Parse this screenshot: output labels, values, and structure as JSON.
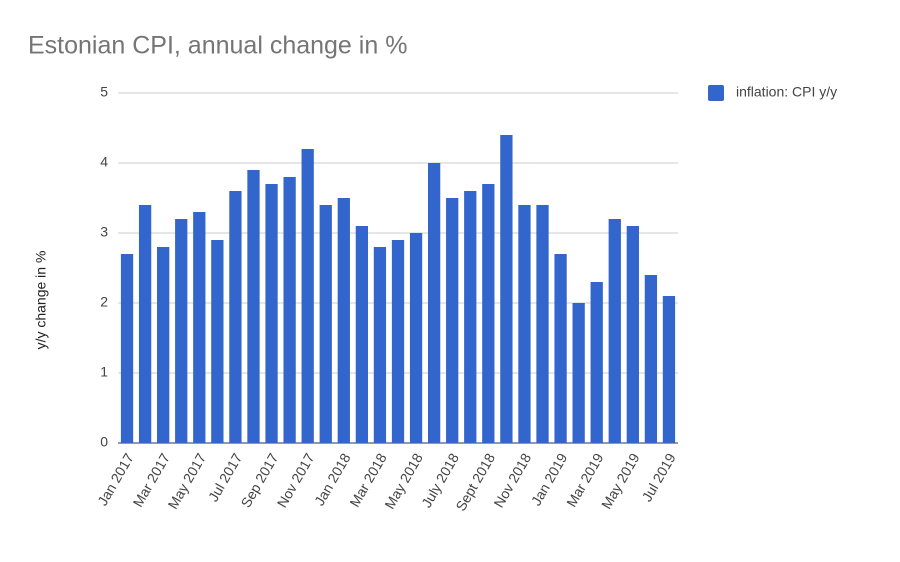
{
  "chart_data": {
    "type": "bar",
    "title": "Estonian CPI, annual change in %",
    "y_label": "y/y change in %",
    "categories": [
      "Jan 2017",
      null,
      "Mar 2017",
      null,
      "May 2017",
      null,
      "Jul 2017",
      null,
      "Sep 2017",
      null,
      "Nov 2017",
      null,
      "Jan 2018",
      null,
      "Mar 2018",
      null,
      "May 2018",
      null,
      "July 2018",
      null,
      "Sept 2018",
      null,
      "Nov 2018",
      null,
      "Jan 2019",
      null,
      "Mar 2019",
      null,
      "May 2019",
      null,
      "Jul 2019"
    ],
    "series": [
      {
        "name": "inflation: CPI y/y",
        "color": "#3366cc",
        "values": [
          2.7,
          3.4,
          2.8,
          3.2,
          3.3,
          2.9,
          3.6,
          3.9,
          3.7,
          3.8,
          4.2,
          3.4,
          3.5,
          3.1,
          2.8,
          2.9,
          3.0,
          4.0,
          3.5,
          3.6,
          3.7,
          4.4,
          3.4,
          3.4,
          2.7,
          2.0,
          2.3,
          3.2,
          3.1,
          2.4,
          2.1
        ]
      }
    ],
    "ylim": [
      0,
      5
    ],
    "yticks": [
      0,
      1,
      2,
      3,
      4,
      5
    ],
    "grid": true,
    "legend": "right"
  }
}
